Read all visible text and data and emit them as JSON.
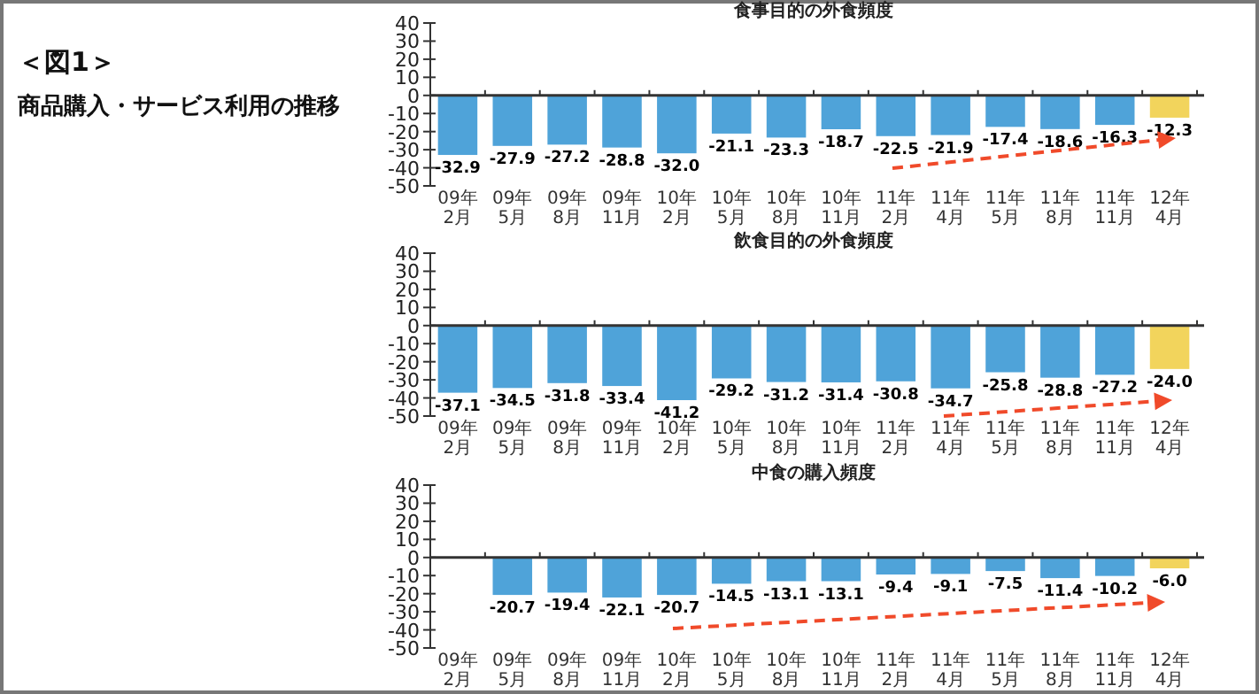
{
  "chart_data": [
    {
      "type": "bar",
      "title": "食事目的の外食頻度",
      "annotations": [
        "＜図1＞",
        "商品購入・サービス利用の推移"
      ],
      "categories": [
        "09年2月",
        "09年5月",
        "09年8月",
        "09年11月",
        "10年2月",
        "10年5月",
        "10年8月",
        "10年11月",
        "11年2月",
        "11年4月",
        "11年5月",
        "11年8月",
        "11年11月",
        "12年4月"
      ],
      "values": [
        -32.9,
        -27.9,
        -27.2,
        -28.8,
        -32.0,
        -21.1,
        -23.3,
        -18.7,
        -22.5,
        -21.9,
        -17.4,
        -18.6,
        -16.3,
        -12.3
      ],
      "value_labels": [
        "-32.9",
        "-27.9",
        "-27.2",
        "-28.8",
        "-32.0",
        "-21.1",
        "-23.3",
        "-18.7",
        "-22.5",
        "-21.9",
        "-17.4",
        "-18.6",
        "-16.3",
        "-12.3"
      ],
      "colors": [
        "#4fa3d9",
        "#4fa3d9",
        "#4fa3d9",
        "#4fa3d9",
        "#4fa3d9",
        "#4fa3d9",
        "#4fa3d9",
        "#4fa3d9",
        "#4fa3d9",
        "#4fa3d9",
        "#4fa3d9",
        "#4fa3d9",
        "#4fa3d9",
        "#f2d45c"
      ],
      "ylim": [
        -50,
        40
      ],
      "yticks": [
        -50,
        -40,
        -30,
        -20,
        -10,
        0,
        10,
        20,
        30,
        40
      ]
    },
    {
      "type": "bar",
      "title": "飲食目的の外食頻度",
      "categories": [
        "09年2月",
        "09年5月",
        "09年8月",
        "09年11月",
        "10年2月",
        "10年5月",
        "10年8月",
        "10年11月",
        "11年2月",
        "11年4月",
        "11年5月",
        "11年8月",
        "11年11月",
        "12年4月"
      ],
      "values": [
        -37.1,
        -34.5,
        -31.8,
        -33.4,
        -41.2,
        -29.2,
        -31.2,
        -31.4,
        -30.8,
        -34.7,
        -25.8,
        -28.8,
        -27.2,
        -24.0
      ],
      "value_labels": [
        "-37.1",
        "-34.5",
        "-31.8",
        "-33.4",
        "-41.2",
        "-29.2",
        "-31.2",
        "-31.4",
        "-30.8",
        "-34.7",
        "-25.8",
        "-28.8",
        "-27.2",
        "-24.0"
      ],
      "colors": [
        "#4fa3d9",
        "#4fa3d9",
        "#4fa3d9",
        "#4fa3d9",
        "#4fa3d9",
        "#4fa3d9",
        "#4fa3d9",
        "#4fa3d9",
        "#4fa3d9",
        "#4fa3d9",
        "#4fa3d9",
        "#4fa3d9",
        "#4fa3d9",
        "#f2d45c"
      ],
      "ylim": [
        -50,
        40
      ],
      "yticks": [
        -50,
        -40,
        -30,
        -20,
        -10,
        0,
        10,
        20,
        30,
        40
      ]
    },
    {
      "type": "bar",
      "title": "中食の購入頻度",
      "categories": [
        "09年2月",
        "09年5月",
        "09年8月",
        "09年11月",
        "10年2月",
        "10年5月",
        "10年8月",
        "10年11月",
        "11年2月",
        "11年4月",
        "11年5月",
        "11年8月",
        "11年11月",
        "12年4月"
      ],
      "values": [
        null,
        -20.7,
        -19.4,
        -22.1,
        -20.7,
        -14.5,
        -13.1,
        -13.1,
        -9.4,
        -9.1,
        -7.5,
        -11.4,
        -10.2,
        -6.0
      ],
      "value_labels": [
        null,
        "-20.7",
        "-19.4",
        "-22.1",
        "-20.7",
        "-14.5",
        "-13.1",
        "-13.1",
        "-9.4",
        "-9.1",
        "-7.5",
        "-11.4",
        "-10.2",
        "-6.0"
      ],
      "colors": [
        null,
        "#4fa3d9",
        "#4fa3d9",
        "#4fa3d9",
        "#4fa3d9",
        "#4fa3d9",
        "#4fa3d9",
        "#4fa3d9",
        "#4fa3d9",
        "#4fa3d9",
        "#4fa3d9",
        "#4fa3d9",
        "#4fa3d9",
        "#f2d45c"
      ],
      "ylim": [
        -50,
        40
      ],
      "yticks": [
        -50,
        -40,
        -30,
        -20,
        -10,
        0,
        10,
        20,
        30,
        40
      ]
    }
  ]
}
